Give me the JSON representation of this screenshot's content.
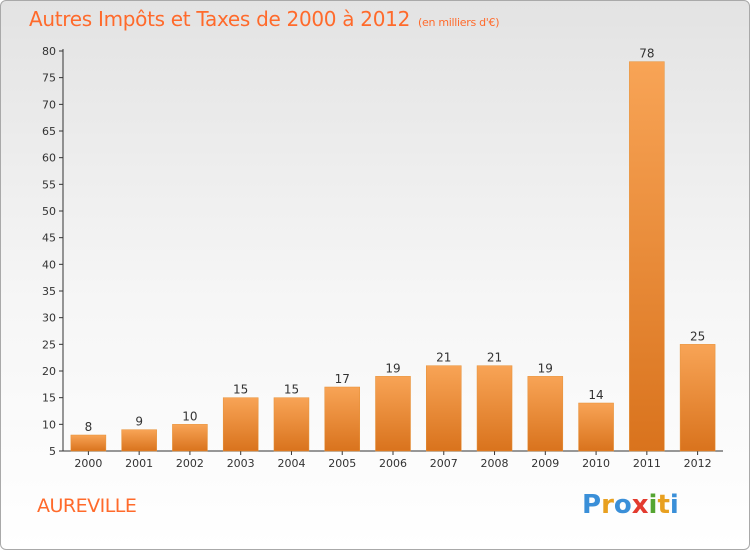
{
  "chart_data": {
    "type": "bar",
    "title": "Autres Impôts et Taxes de 2000 à 2012",
    "subtitle": "(en milliers d'€)",
    "categories": [
      "2000",
      "2001",
      "2002",
      "2003",
      "2004",
      "2005",
      "2006",
      "2007",
      "2008",
      "2009",
      "2010",
      "2011",
      "2012"
    ],
    "values": [
      8,
      9,
      10,
      15,
      15,
      17,
      19,
      21,
      21,
      19,
      14,
      78,
      25
    ],
    "ylim": [
      5,
      80
    ],
    "yticks": [
      5,
      10,
      15,
      20,
      25,
      30,
      35,
      40,
      45,
      50,
      55,
      60,
      65,
      70,
      75,
      80
    ],
    "grid": false,
    "bar_color": "#f08a2a",
    "xlabel": "",
    "ylabel": ""
  },
  "footer": {
    "place": "AUREVILLE",
    "logo_text": "Proxiti",
    "logo_letters": [
      {
        "ch": "P",
        "color": "#3a8fd8"
      },
      {
        "ch": "r",
        "color": "#e8a020"
      },
      {
        "ch": "o",
        "color": "#3a8fd8"
      },
      {
        "ch": "x",
        "color": "#e33b2f"
      },
      {
        "ch": "i",
        "color": "#55a532"
      },
      {
        "ch": "t",
        "color": "#e8a020"
      },
      {
        "ch": "i",
        "color": "#3a8fd8"
      }
    ]
  },
  "colors": {
    "accent": "#ff6a2b",
    "axis": "#333333"
  }
}
